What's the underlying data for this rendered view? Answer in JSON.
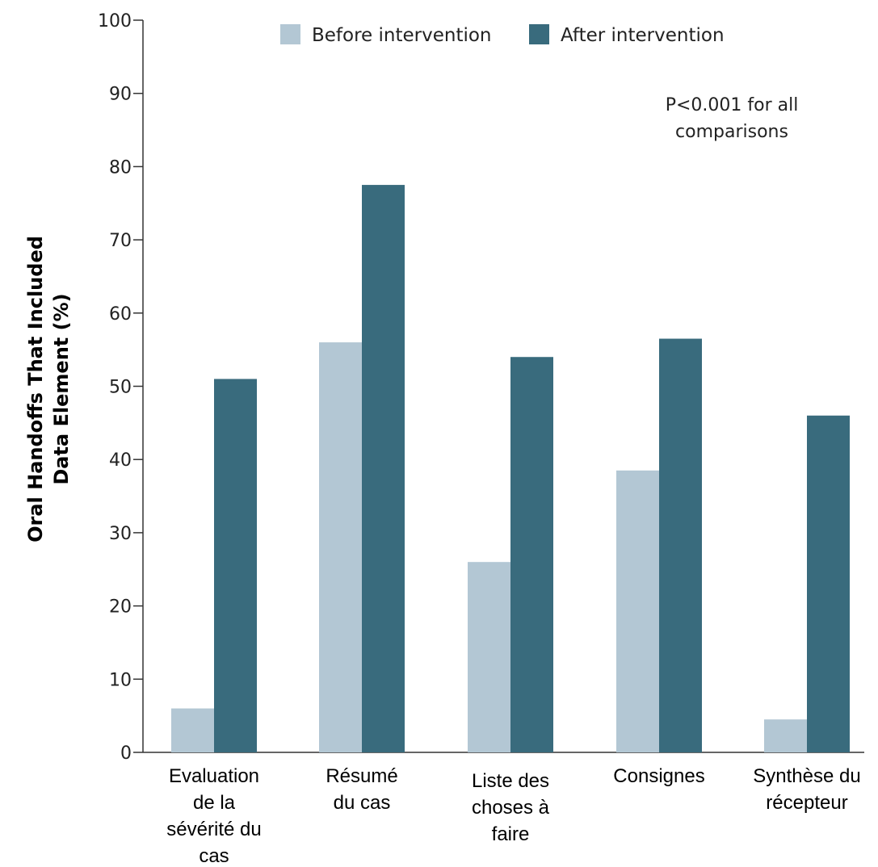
{
  "chart_data": {
    "type": "bar",
    "categories": [
      [
        "Evaluation",
        "de la",
        "sévérité du",
        "cas"
      ],
      [
        "Résumé",
        "du cas"
      ],
      [
        "Liste des",
        "choses à",
        "faire"
      ],
      [
        "Consignes"
      ],
      [
        "Synthèse du",
        "récepteur"
      ]
    ],
    "series": [
      {
        "name": "Before intervention",
        "color": "#b3c7d4",
        "values": [
          6,
          56,
          26,
          38.5,
          4.5
        ]
      },
      {
        "name": "After intervention",
        "color": "#396b7d",
        "values": [
          51,
          77.5,
          54,
          56.5,
          46
        ]
      }
    ],
    "ylabel": [
      "Oral Handoffs That Included",
      "Data Element (%)"
    ],
    "ylim": [
      0,
      100
    ],
    "yticks": [
      0,
      10,
      20,
      30,
      40,
      50,
      60,
      70,
      80,
      90,
      100
    ],
    "annotation": [
      "P<0.001 for all",
      "comparisons"
    ],
    "legend_position": "top",
    "grid": false
  }
}
